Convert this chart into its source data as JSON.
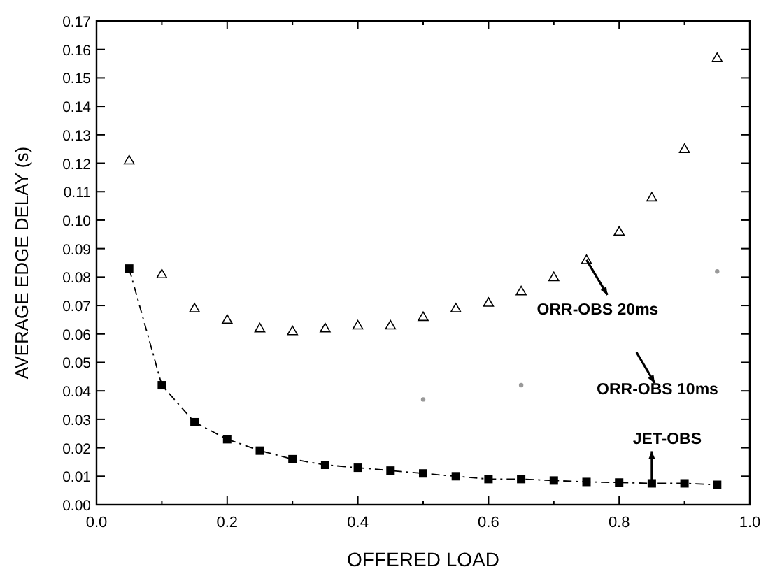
{
  "chart_data": {
    "type": "line",
    "xlabel": "OFFERED LOAD",
    "ylabel": "AVERAGE EDGE DELAY (s)",
    "xlim": [
      0,
      1
    ],
    "ylim": [
      0,
      0.17
    ],
    "xticks": [
      {
        "value": 0,
        "label": "0.0"
      },
      {
        "value": 0.1,
        "label": null
      },
      {
        "value": 0.2,
        "label": "0.2"
      },
      {
        "value": 0.3,
        "label": null
      },
      {
        "value": 0.4,
        "label": "0.4"
      },
      {
        "value": 0.5,
        "label": null
      },
      {
        "value": 0.6,
        "label": "0.6"
      },
      {
        "value": 0.7,
        "label": null
      },
      {
        "value": 0.8,
        "label": "0.8"
      },
      {
        "value": 0.9,
        "label": null
      },
      {
        "value": 1,
        "label": "1.0"
      }
    ],
    "yticks": [
      {
        "value": 0,
        "label": "0.00"
      },
      {
        "value": 0.01,
        "label": "0.01"
      },
      {
        "value": 0.02,
        "label": "0.02"
      },
      {
        "value": 0.03,
        "label": "0.03"
      },
      {
        "value": 0.04,
        "label": "0.04"
      },
      {
        "value": 0.05,
        "label": "0.05"
      },
      {
        "value": 0.06,
        "label": "0.06"
      },
      {
        "value": 0.07,
        "label": "0.07"
      },
      {
        "value": 0.08,
        "label": "0.08"
      },
      {
        "value": 0.09,
        "label": "0.09"
      },
      {
        "value": 0.1,
        "label": "0.10"
      },
      {
        "value": 0.11,
        "label": "0.11"
      },
      {
        "value": 0.12,
        "label": "0.12"
      },
      {
        "value": 0.13,
        "label": "0.13"
      },
      {
        "value": 0.14,
        "label": "0.14"
      },
      {
        "value": 0.15,
        "label": "0.15"
      },
      {
        "value": 0.16,
        "label": "0.16"
      },
      {
        "value": 0.17,
        "label": "0.17"
      }
    ],
    "annotations": [
      {
        "text": "ORR-OBS 20ms",
        "x": 0.75,
        "y": 0.086
      },
      "ORR-OBS 10ms",
      {
        "text": "JET-OBS",
        "x": 0.85,
        "y": 0.0075
      }
    ],
    "series": [
      {
        "type": "scatter",
        "marker": "triangle",
        "color": "#000000",
        "x": [
          0.05,
          0.1,
          0.15,
          0.2,
          0.25,
          0.3,
          0.35,
          0.4,
          0.45,
          0.5,
          0.55,
          0.6,
          0.65,
          0.7,
          0.75,
          0.8,
          0.85,
          0.9,
          0.95
        ],
        "values": [
          0.121,
          0.081,
          0.069,
          0.065,
          0.062,
          0.061,
          0.062,
          0.063,
          0.063,
          0.066,
          0.069,
          0.071,
          0.075,
          0.08,
          0.086,
          0.096,
          0.108,
          0.125,
          0.157
        ]
      },
      {
        "type": "scatter",
        "marker": "circle",
        "color": "#999999",
        "x": [
          0.5,
          0.65,
          0.95
        ],
        "values": [
          0.037,
          0.042,
          0.082
        ]
      },
      {
        "marker": "square",
        "line_style": "dashed",
        "color": "#000000",
        "x": [
          0.05,
          0.1,
          0.15,
          0.2,
          0.25,
          0.3,
          0.35,
          0.4,
          0.45,
          0.5,
          0.55,
          0.6,
          0.65,
          0.7,
          0.75,
          0.8,
          0.85,
          0.9,
          0.95
        ],
        "values": [
          0.083,
          0.042,
          0.029,
          0.023,
          0.019,
          0.016,
          0.014,
          0.013,
          0.012,
          0.011,
          0.01,
          0.009,
          0.009,
          0.0085,
          0.008,
          0.0078,
          0.0075,
          0.0075,
          0.007
        ]
      }
    ]
  }
}
